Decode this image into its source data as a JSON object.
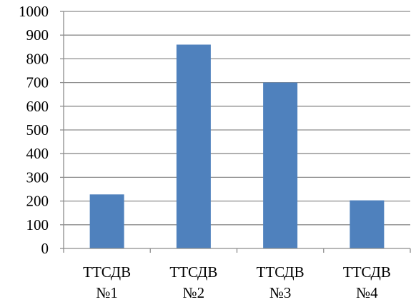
{
  "chart_data": {
    "type": "bar",
    "categories": [
      [
        "ТТСДВ",
        "№1"
      ],
      [
        "ТТСДВ",
        "№2"
      ],
      [
        "ТТСДВ",
        "№3"
      ],
      [
        "ТТСДВ",
        "№4"
      ]
    ],
    "values": [
      228,
      860,
      700,
      203
    ],
    "ylim": [
      0,
      1000
    ],
    "yticks": [
      0,
      100,
      200,
      300,
      400,
      500,
      600,
      700,
      800,
      900,
      1000
    ],
    "grid": true,
    "bar_color": "#4f81bd",
    "title": "",
    "xlabel": "",
    "ylabel": ""
  }
}
